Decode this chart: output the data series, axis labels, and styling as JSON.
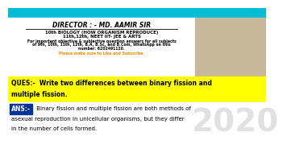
{
  "bg_top": "#ffffff",
  "bg_question": "#ffff00",
  "bg_answer_label": "#003399",
  "bg_header_bar": "#00bcd4",
  "director_text": "DIRECTOR : - MD. AAMIR SIR",
  "line1": "10th BIOLOGY (HOW ORGANISM REPRODUCE)",
  "line2": "11th,12th, NEET IIT- JEE & ARTS",
  "line3": "For important objective & subjective question answers for all subjects",
  "line4": "of 9th, 10th, 11th, 12th, B.A, B.Sc, and B.Com, WhatsApp on this",
  "line5": "number: 6202491120.",
  "line6": "Please make sure to Like and Subscribe.",
  "ques_line1": "QUES:-  Write two differences between binary fission and",
  "ques_line2": "multiple fission.",
  "ans_label": "ANS:-",
  "ans_text1": " Binary fission and multiple fission are both methods of",
  "ans_text2": "asexual reproduction in unicellular organisms, but they differ",
  "ans_text3": "in the number of cells formed.",
  "watermark": "2020",
  "orange_color": "#ff8c00",
  "gray_color": "#888888"
}
